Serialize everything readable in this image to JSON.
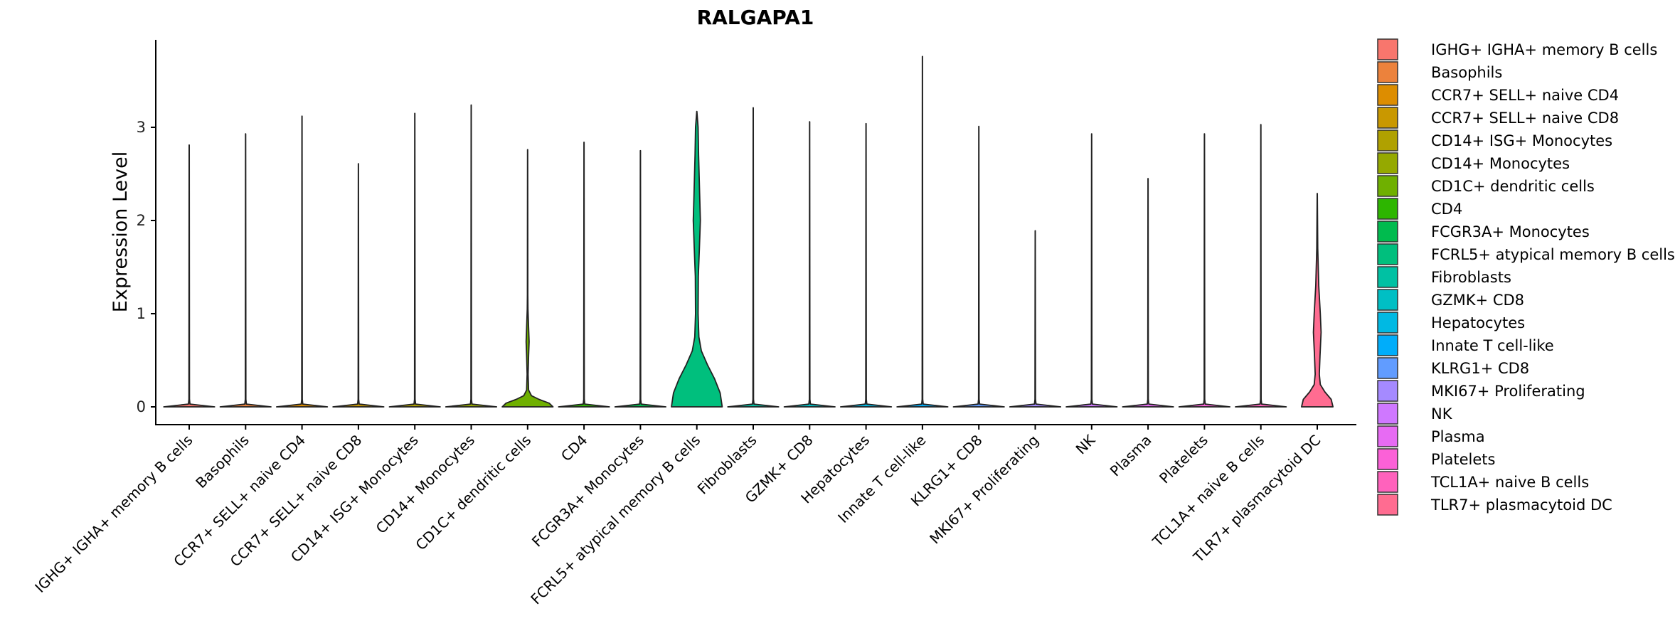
{
  "chart_data": {
    "type": "violin",
    "title": "RALGAPA1",
    "xlabel": "",
    "ylabel": "Expression Level",
    "ylim": [
      -0.19,
      3.93
    ],
    "yticks": [
      "0",
      "1",
      "2",
      "3"
    ],
    "grid": false,
    "legend_position": "right",
    "categories": [
      " IGHG+ IGHA+ memory B cells",
      "Basophils",
      "CCR7+ SELL+ naive CD4",
      "CCR7+ SELL+ naive CD8",
      "CD14+ ISG+ Monocytes",
      "CD14+ Monocytes",
      "CD1C+ dendritic cells",
      "CD4",
      "FCGR3A+ Monocytes",
      "FCRL5+ atypical memory B cells",
      "Fibroblasts",
      "GZMK+ CD8",
      "Hepatocytes",
      "Innate T cell-like",
      "KLRG1+ CD8",
      "MKI67+ Proliferating",
      "NK",
      "Plasma",
      "Platelets",
      "TCL1A+ naive B cells",
      "TLR7+ plasmacytoid DC"
    ],
    "colors": [
      "#F8766D",
      "#EC823C",
      "#DD8D00",
      "#C99800",
      "#B0A100",
      "#95A900",
      "#6FB000",
      "#2DB600",
      "#00BB4E",
      "#00BF7D",
      "#00C1A3",
      "#00BFC4",
      "#00B9E3",
      "#00ADFA",
      "#619CFF",
      "#A58AFF",
      "#CF78FF",
      "#E76BF3",
      "#FB61D7",
      "#FF62BC",
      "#FF6C91"
    ],
    "max_values": [
      2.81,
      2.93,
      3.12,
      2.61,
      3.15,
      3.24,
      2.76,
      2.84,
      2.75,
      3.17,
      3.21,
      3.06,
      3.04,
      3.76,
      3.01,
      1.89,
      2.93,
      2.45,
      2.93,
      3.03,
      2.29
    ],
    "density_profiles": {
      "6": [
        [
          0,
          1
        ],
        [
          0.04,
          0.85
        ],
        [
          0.08,
          0.45
        ],
        [
          0.12,
          0.15
        ],
        [
          0.18,
          0.04
        ],
        [
          0.35,
          0.02
        ],
        [
          0.55,
          0.04
        ],
        [
          0.7,
          0.06
        ],
        [
          0.85,
          0.04
        ],
        [
          1.05,
          0.015
        ],
        [
          1.2,
          0.008
        ]
      ],
      "9": [
        [
          0,
          1
        ],
        [
          0.15,
          0.92
        ],
        [
          0.3,
          0.7
        ],
        [
          0.45,
          0.42
        ],
        [
          0.6,
          0.18
        ],
        [
          0.75,
          0.08
        ],
        [
          1.0,
          0.05
        ],
        [
          1.4,
          0.06
        ],
        [
          1.7,
          0.1
        ],
        [
          2.0,
          0.14
        ],
        [
          2.3,
          0.11
        ],
        [
          2.7,
          0.07
        ],
        [
          3.0,
          0.05
        ],
        [
          3.17,
          0.03
        ]
      ],
      "20": [
        [
          0,
          0.62
        ],
        [
          0.08,
          0.55
        ],
        [
          0.16,
          0.3
        ],
        [
          0.24,
          0.12
        ],
        [
          0.35,
          0.08
        ],
        [
          0.55,
          0.11
        ],
        [
          0.8,
          0.15
        ],
        [
          1.0,
          0.12
        ],
        [
          1.3,
          0.06
        ],
        [
          1.7,
          0.02
        ],
        [
          2.0,
          0.01
        ]
      ]
    }
  }
}
